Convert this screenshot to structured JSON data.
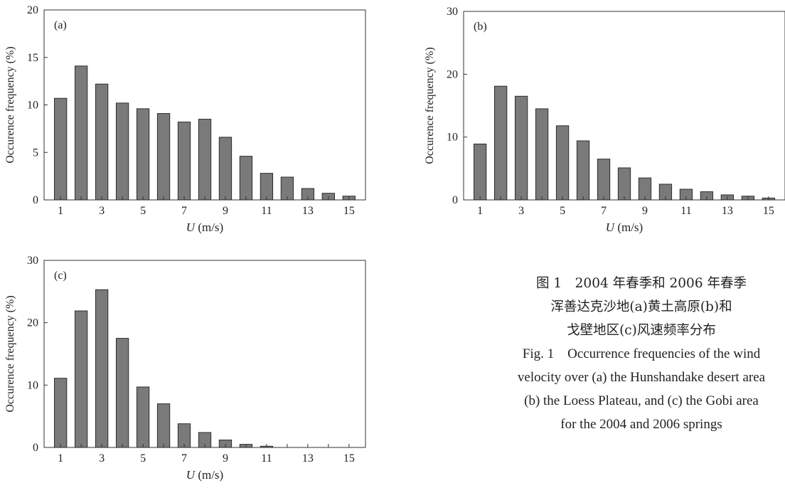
{
  "chart_data": [
    {
      "type": "bar",
      "panel_label": "(a)",
      "xlabel_var": "U",
      "xlabel_unit": "(m/s)",
      "ylabel": "Occurence frequency (%)",
      "ylim": [
        0,
        20
      ],
      "yticks": [
        0,
        5,
        10,
        15,
        20
      ],
      "xticks": [
        1,
        3,
        5,
        7,
        9,
        11,
        13,
        15
      ],
      "x": [
        1,
        2,
        3,
        4,
        5,
        6,
        7,
        8,
        9,
        10,
        11,
        12,
        13,
        14,
        15
      ],
      "values": [
        10.7,
        14.1,
        12.2,
        10.2,
        9.6,
        9.1,
        8.2,
        8.5,
        6.6,
        4.6,
        2.8,
        2.4,
        1.2,
        0.7,
        0.4
      ],
      "bar_color": "#7a7a7a"
    },
    {
      "type": "bar",
      "panel_label": "(b)",
      "xlabel_var": "U",
      "xlabel_unit": "(m/s)",
      "ylabel": "Occurence frequency (%)",
      "ylim": [
        0,
        30
      ],
      "yticks": [
        0,
        10,
        20,
        30
      ],
      "xticks": [
        1,
        3,
        5,
        7,
        9,
        11,
        13,
        15
      ],
      "x": [
        1,
        2,
        3,
        4,
        5,
        6,
        7,
        8,
        9,
        10,
        11,
        12,
        13,
        14,
        15
      ],
      "values": [
        8.9,
        18.1,
        16.5,
        14.5,
        11.8,
        9.4,
        6.5,
        5.1,
        3.5,
        2.5,
        1.7,
        1.3,
        0.8,
        0.6,
        0.3
      ],
      "bar_color": "#7a7a7a"
    },
    {
      "type": "bar",
      "panel_label": "(c)",
      "xlabel_var": "U",
      "xlabel_unit": "(m/s)",
      "ylabel": "Occurence frequency (%)",
      "ylim": [
        0,
        30
      ],
      "yticks": [
        0,
        10,
        20,
        30
      ],
      "xticks": [
        1,
        3,
        5,
        7,
        9,
        11,
        13,
        15
      ],
      "x": [
        1,
        2,
        3,
        4,
        5,
        6,
        7,
        8,
        9,
        10,
        11,
        12,
        13,
        14,
        15
      ],
      "values": [
        11.1,
        21.9,
        25.3,
        17.5,
        9.7,
        7.0,
        3.8,
        2.4,
        1.2,
        0.5,
        0.2,
        0,
        0,
        0,
        0
      ],
      "bar_color": "#7a7a7a"
    }
  ],
  "caption": {
    "zh_lines": [
      "图 1　2004 年春季和 2006 年春季",
      "浑善达克沙地(a)黄土高原(b)和",
      "戈壁地区(c)风速频率分布"
    ],
    "en_lines": [
      "Fig. 1　Occurrence frequencies of the wind",
      "velocity over (a) the Hunshandake desert area",
      "(b) the Loess Plateau, and (c) the Gobi area",
      "for the 2004 and 2006 springs"
    ]
  }
}
